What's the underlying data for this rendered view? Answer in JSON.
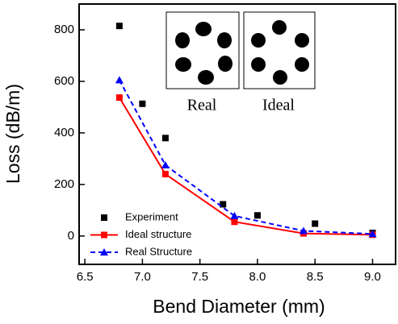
{
  "chart_data": {
    "type": "line",
    "x_label": "Bend Diameter (mm)",
    "y_label": "Loss (dB/m)",
    "xlim": [
      6.45,
      9.2
    ],
    "ylim": [
      -110,
      900
    ],
    "xticks": [
      6.5,
      7.0,
      7.5,
      8.0,
      8.5,
      9.0
    ],
    "yticks": [
      0,
      200,
      400,
      600,
      800
    ],
    "inset_labels": [
      "Real",
      "Ideal"
    ],
    "series": [
      {
        "name": "Experiment",
        "color": "#000000",
        "marker": "square",
        "linestyle": "none",
        "x": [
          6.8,
          7.0,
          7.2,
          7.7,
          8.0,
          8.5,
          9.0
        ],
        "values": [
          815,
          513,
          380,
          123,
          80,
          48,
          12
        ]
      },
      {
        "name": "Ideal structure",
        "color": "#ff0000",
        "marker": "square",
        "linestyle": "solid",
        "x": [
          6.8,
          7.2,
          7.8,
          8.4,
          9.0
        ],
        "values": [
          537,
          240,
          55,
          10,
          5
        ]
      },
      {
        "name": "Real Structure",
        "color": "#0000ff",
        "marker": "triangle",
        "linestyle": "dashed",
        "x": [
          6.8,
          7.2,
          7.8,
          8.4,
          9.0
        ],
        "values": [
          605,
          275,
          78,
          20,
          8
        ]
      }
    ]
  }
}
